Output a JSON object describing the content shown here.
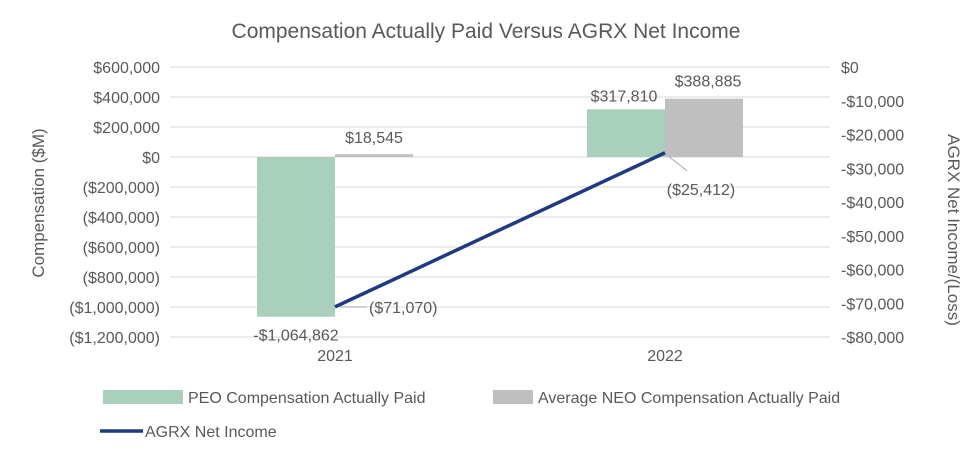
{
  "chart_data": {
    "type": "bar",
    "title": "Compensation Actually Paid Versus AGRX Net Income",
    "categories": [
      "2021",
      "2022"
    ],
    "y_left": {
      "label": "Compensation ($M)",
      "range": [
        -1200000,
        600000
      ],
      "ticks": [
        {
          "value": 600000,
          "label": "$600,000"
        },
        {
          "value": 400000,
          "label": "$400,000"
        },
        {
          "value": 200000,
          "label": "$200,000"
        },
        {
          "value": 0,
          "label": "$0"
        },
        {
          "value": -200000,
          "label": "($200,000)"
        },
        {
          "value": -400000,
          "label": "($400,000)"
        },
        {
          "value": -600000,
          "label": "($600,000)"
        },
        {
          "value": -800000,
          "label": "($800,000)"
        },
        {
          "value": -1000000,
          "label": "($1,000,000)"
        },
        {
          "value": -1200000,
          "label": "($1,200,000)"
        }
      ]
    },
    "y_right": {
      "label": "AGRX Net Income/(Loss)",
      "range": [
        -80000,
        0
      ],
      "ticks": [
        {
          "value": 0,
          "label": "$0"
        },
        {
          "value": -10000,
          "label": "-$10,000"
        },
        {
          "value": -20000,
          "label": "-$20,000"
        },
        {
          "value": -30000,
          "label": "-$30,000"
        },
        {
          "value": -40000,
          "label": "-$40,000"
        },
        {
          "value": -50000,
          "label": "-$50,000"
        },
        {
          "value": -60000,
          "label": "-$60,000"
        },
        {
          "value": -70000,
          "label": "-$70,000"
        },
        {
          "value": -80000,
          "label": "-$80,000"
        }
      ]
    },
    "series": [
      {
        "name": "PEO Compensation Actually Paid",
        "kind": "bar",
        "axis": "left",
        "color": "#a9cfbd",
        "values": [
          -1064862,
          317810
        ],
        "labels": [
          "-$1,064,862",
          "$317,810"
        ]
      },
      {
        "name": "Average NEO Compensation Actually Paid",
        "kind": "bar",
        "axis": "left",
        "color": "#bfbfbf",
        "values": [
          18545,
          388885
        ],
        "labels": [
          "$18,545",
          "$388,885"
        ]
      },
      {
        "name": "AGRX Net Income",
        "kind": "line",
        "axis": "right",
        "color": "#1f3a80",
        "values": [
          -71070,
          -25412
        ],
        "labels": [
          "($71,070)",
          "($25,412)"
        ]
      }
    ],
    "grid": true,
    "legend_position": "bottom"
  }
}
